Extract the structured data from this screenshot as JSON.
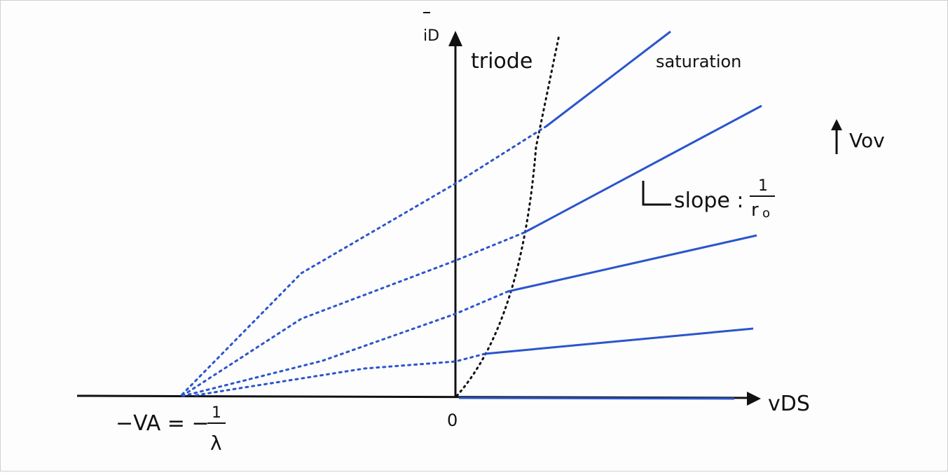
{
  "diagram": {
    "y_axis_label": "iD",
    "x_axis_label": "vDS",
    "origin_label": "0",
    "triode_label": "triode",
    "saturation_label": "saturation",
    "vov_label": "Vov",
    "va_label": "−VA = −",
    "lambda_numerator": "1",
    "lambda_denominator": "λ",
    "slope_text": "slope :",
    "slope_numerator": "1",
    "slope_denominator": "r",
    "slope_denominator_sub": "o",
    "axis_color": "#111111",
    "curve_color": "#2a55cc",
    "boundary_color": "#111111"
  }
}
